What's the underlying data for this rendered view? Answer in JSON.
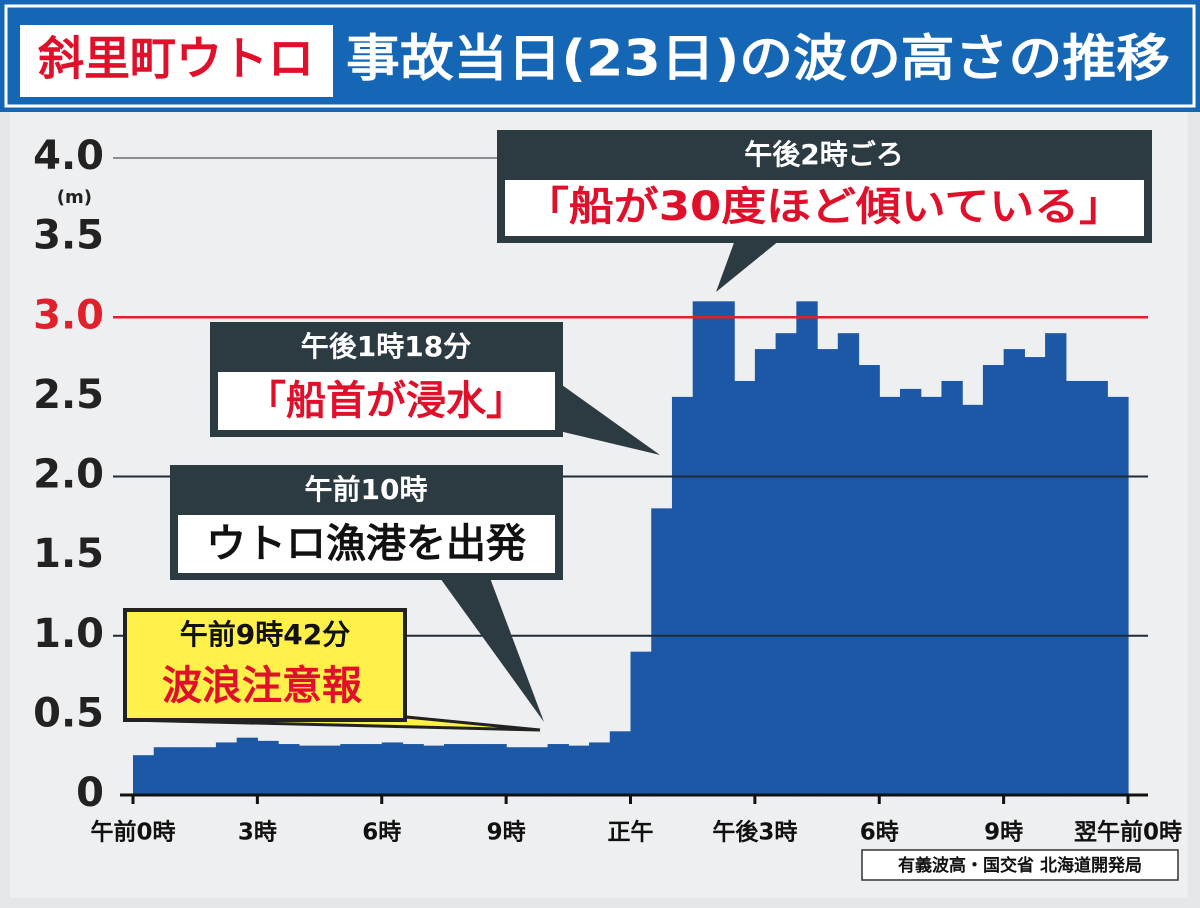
{
  "chart_data": {
    "type": "histogram",
    "location": "斜里町ウトロ",
    "title": "事故当日(23日)の波の高さの推移",
    "y_unit": "(m)",
    "source": "有義波高・国交省 北海道開発局",
    "color": "#1c58a6",
    "reference_line": {
      "value": 3,
      "color": "#e0202a"
    },
    "xlim": [
      0,
      24
    ],
    "xticks": [
      {
        "value": 0,
        "label": "午前0時"
      },
      {
        "value": 3,
        "label": "3時"
      },
      {
        "value": 6,
        "label": "6時"
      },
      {
        "value": 9,
        "label": "9時"
      },
      {
        "value": 12,
        "label": "正午"
      },
      {
        "value": 15,
        "label": "午後3時"
      },
      {
        "value": 18,
        "label": "6時"
      },
      {
        "value": 21,
        "label": "9時"
      },
      {
        "value": 24,
        "label": "翌午前0時"
      }
    ],
    "ylim": [
      0,
      4
    ],
    "yticks": [
      0,
      0.5,
      {
        "value": 1,
        "label": "1.0"
      },
      1.5,
      {
        "value": 2,
        "label": "2.0"
      },
      2.5,
      {
        "value": 3,
        "label": "3.0"
      },
      3.5,
      {
        "value": 4,
        "label": "4.0"
      }
    ],
    "bins": [
      0,
      0.5,
      1,
      1.5,
      2,
      2.5,
      3,
      3.5,
      4,
      4.5,
      5,
      5.5,
      6,
      6.5,
      7,
      7.5,
      8,
      8.5,
      9,
      9.5,
      10,
      10.5,
      11,
      11.5,
      12,
      12.5,
      13,
      13.5,
      14,
      14.5,
      15,
      15.5,
      16,
      16.5,
      17,
      17.5,
      18,
      18.5,
      19,
      19.5,
      20,
      20.5,
      21,
      21.5,
      22,
      22.5,
      23,
      23.5,
      24
    ],
    "values": [
      0.25,
      0.3,
      0.3,
      0.3,
      0.33,
      0.36,
      0.34,
      0.32,
      0.31,
      0.31,
      0.32,
      0.32,
      0.33,
      0.32,
      0.31,
      0.32,
      0.32,
      0.32,
      0.3,
      0.3,
      0.32,
      0.31,
      0.33,
      0.4,
      0.9,
      1.8,
      2.5,
      3.1,
      3.1,
      2.6,
      2.8,
      2.9,
      3.1,
      2.8,
      2.9,
      2.7,
      2.5,
      2.55,
      2.5,
      2.6,
      2.45,
      2.7,
      2.8,
      2.75,
      2.9,
      2.6,
      2.6,
      2.5
    ],
    "annotations": [
      {
        "time": "午前9時42分",
        "text": "波浪注意報"
      },
      {
        "time": "午前10時",
        "text": "ウトロ漁港を出発"
      },
      {
        "time": "午後1時18分",
        "text": "「船首が浸水」"
      },
      {
        "time": "午後2時ごろ",
        "text": "「船が30度ほど傾いている」"
      }
    ]
  }
}
